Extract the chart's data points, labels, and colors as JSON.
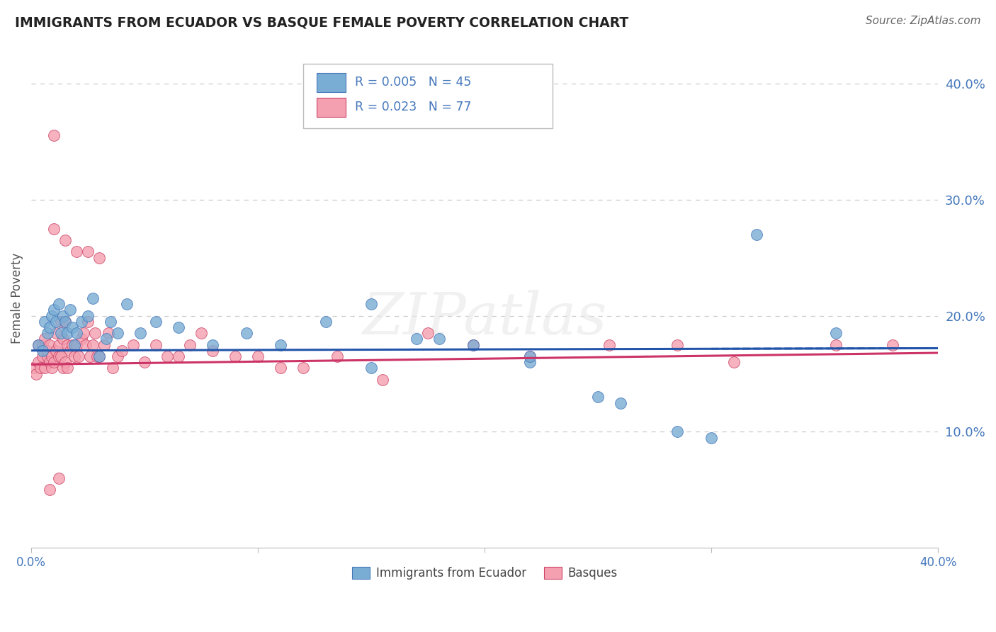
{
  "title": "IMMIGRANTS FROM ECUADOR VS BASQUE FEMALE POVERTY CORRELATION CHART",
  "source": "Source: ZipAtlas.com",
  "ylabel": "Female Poverty",
  "xlim": [
    0.0,
    0.4
  ],
  "ylim": [
    0.0,
    0.43
  ],
  "yticks": [
    0.1,
    0.2,
    0.3,
    0.4
  ],
  "ytick_labels": [
    "10.0%",
    "20.0%",
    "30.0%",
    "40.0%"
  ],
  "xtick_labels": [
    "0.0%",
    "",
    "",
    "",
    "40.0%"
  ],
  "grid_color": "#cccccc",
  "background_color": "#ffffff",
  "blue_color": "#7aadd4",
  "pink_color": "#f4a0b0",
  "blue_edge_color": "#4477bb",
  "pink_edge_color": "#cc4466",
  "blue_line_color": "#2255aa",
  "pink_line_color": "#cc3366",
  "legend_r_blue": "R = 0.005",
  "legend_n_blue": "N = 45",
  "legend_r_pink": "R = 0.023",
  "legend_n_pink": "N = 77",
  "legend_label_blue": "Immigrants from Ecuador",
  "legend_label_pink": "Basques",
  "watermark": "ZIPatlas",
  "tick_color": "#4477bb",
  "blue_x": [
    0.003,
    0.005,
    0.006,
    0.007,
    0.008,
    0.009,
    0.01,
    0.011,
    0.012,
    0.013,
    0.014,
    0.015,
    0.016,
    0.017,
    0.018,
    0.019,
    0.02,
    0.022,
    0.025,
    0.027,
    0.03,
    0.033,
    0.035,
    0.038,
    0.042,
    0.048,
    0.055,
    0.065,
    0.08,
    0.095,
    0.11,
    0.13,
    0.15,
    0.17,
    0.195,
    0.22,
    0.25,
    0.285,
    0.32,
    0.355,
    0.15,
    0.18,
    0.22,
    0.26,
    0.3
  ],
  "blue_y": [
    0.175,
    0.17,
    0.195,
    0.185,
    0.19,
    0.2,
    0.205,
    0.195,
    0.21,
    0.185,
    0.2,
    0.195,
    0.185,
    0.205,
    0.19,
    0.175,
    0.185,
    0.195,
    0.2,
    0.215,
    0.165,
    0.18,
    0.195,
    0.185,
    0.21,
    0.185,
    0.195,
    0.19,
    0.175,
    0.185,
    0.175,
    0.195,
    0.21,
    0.18,
    0.175,
    0.16,
    0.13,
    0.1,
    0.27,
    0.185,
    0.155,
    0.18,
    0.165,
    0.125,
    0.095
  ],
  "pink_x": [
    0.001,
    0.002,
    0.003,
    0.003,
    0.004,
    0.005,
    0.005,
    0.006,
    0.006,
    0.007,
    0.007,
    0.008,
    0.008,
    0.009,
    0.009,
    0.01,
    0.01,
    0.011,
    0.011,
    0.012,
    0.012,
    0.013,
    0.013,
    0.014,
    0.014,
    0.015,
    0.015,
    0.016,
    0.016,
    0.017,
    0.018,
    0.019,
    0.02,
    0.021,
    0.022,
    0.023,
    0.024,
    0.025,
    0.026,
    0.027,
    0.028,
    0.029,
    0.03,
    0.032,
    0.034,
    0.036,
    0.038,
    0.04,
    0.045,
    0.05,
    0.055,
    0.06,
    0.065,
    0.07,
    0.075,
    0.08,
    0.09,
    0.1,
    0.11,
    0.12,
    0.135,
    0.155,
    0.175,
    0.195,
    0.22,
    0.255,
    0.285,
    0.31,
    0.355,
    0.38,
    0.01,
    0.015,
    0.02,
    0.025,
    0.03,
    0.008,
    0.012
  ],
  "pink_y": [
    0.155,
    0.15,
    0.16,
    0.175,
    0.155,
    0.165,
    0.175,
    0.155,
    0.18,
    0.165,
    0.17,
    0.16,
    0.175,
    0.155,
    0.165,
    0.355,
    0.16,
    0.17,
    0.185,
    0.165,
    0.175,
    0.195,
    0.165,
    0.155,
    0.18,
    0.195,
    0.16,
    0.175,
    0.155,
    0.17,
    0.175,
    0.165,
    0.175,
    0.165,
    0.18,
    0.185,
    0.175,
    0.195,
    0.165,
    0.175,
    0.185,
    0.165,
    0.165,
    0.175,
    0.185,
    0.155,
    0.165,
    0.17,
    0.175,
    0.16,
    0.175,
    0.165,
    0.165,
    0.175,
    0.185,
    0.17,
    0.165,
    0.165,
    0.155,
    0.155,
    0.165,
    0.145,
    0.185,
    0.175,
    0.165,
    0.175,
    0.175,
    0.16,
    0.175,
    0.175,
    0.275,
    0.265,
    0.255,
    0.255,
    0.25,
    0.05,
    0.06
  ]
}
